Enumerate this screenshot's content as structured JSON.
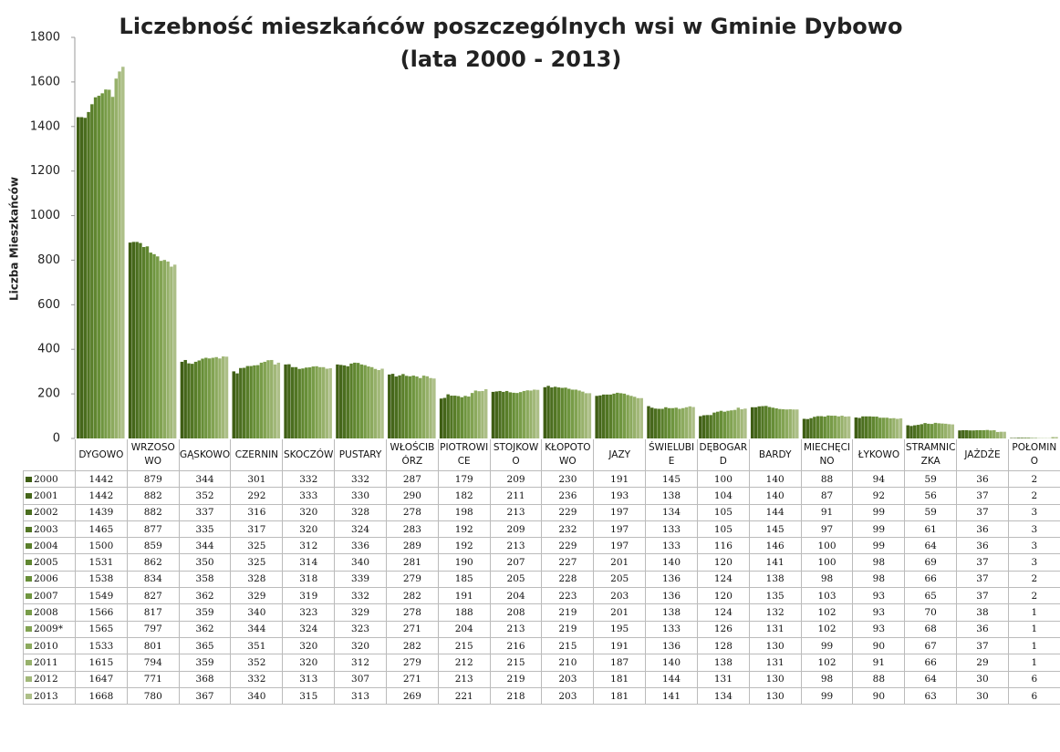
{
  "chart_data": {
    "type": "bar",
    "title": "Liczebność mieszkańców poszczególnych wsi w Gminie Dybowo",
    "subtitle": "(lata 2000 - 2013)",
    "y_label": "Liczba Mieszkańców",
    "categories": [
      "DYGOWO",
      "WRZOSOWO",
      "GĄSKOWO",
      "CZERNIN",
      "SKOCZÓW",
      "PUSTARY",
      "WŁOŚCIBÓRZ",
      "PIOTROWICE",
      "STOJKOWO",
      "KŁOPOTOWO",
      "JAZY",
      "ŚWIELUBIE",
      "DĘBOGARD",
      "BARDY",
      "MIECHĘCINO",
      "ŁYKOWO",
      "STRAMNICZKA",
      "JAŻDŻE",
      "POŁOMINO"
    ],
    "ylim": [
      0,
      1800
    ],
    "yticks": [
      0,
      200,
      400,
      600,
      800,
      1000,
      1200,
      1400,
      1600,
      1800
    ],
    "series": [
      {
        "name": "2000",
        "color": "#3f5e14",
        "values": [
          1442,
          879,
          344,
          301,
          332,
          332,
          287,
          179,
          209,
          230,
          191,
          145,
          100,
          140,
          88,
          94,
          59,
          36,
          2
        ]
      },
      {
        "name": "2001",
        "color": "#45661a",
        "values": [
          1442,
          882,
          352,
          292,
          333,
          330,
          290,
          182,
          211,
          236,
          193,
          138,
          104,
          140,
          87,
          92,
          56,
          37,
          2
        ]
      },
      {
        "name": "2002",
        "color": "#4b6e1f",
        "values": [
          1439,
          882,
          337,
          316,
          320,
          328,
          278,
          198,
          213,
          229,
          197,
          134,
          105,
          144,
          91,
          99,
          59,
          37,
          3
        ]
      },
      {
        "name": "2003",
        "color": "#527624",
        "values": [
          1465,
          877,
          335,
          317,
          320,
          324,
          283,
          192,
          209,
          232,
          197,
          133,
          105,
          145,
          97,
          99,
          61,
          36,
          3
        ]
      },
      {
        "name": "2004",
        "color": "#597e2a",
        "values": [
          1500,
          859,
          344,
          325,
          312,
          336,
          289,
          192,
          213,
          229,
          197,
          133,
          116,
          146,
          100,
          99,
          64,
          36,
          3
        ]
      },
      {
        "name": "2005",
        "color": "#608630",
        "values": [
          1531,
          862,
          350,
          325,
          314,
          340,
          281,
          190,
          207,
          227,
          201,
          140,
          120,
          141,
          100,
          98,
          69,
          37,
          3
        ]
      },
      {
        "name": "2006",
        "color": "#678e37",
        "values": [
          1538,
          834,
          358,
          328,
          318,
          339,
          279,
          185,
          205,
          228,
          205,
          136,
          124,
          138,
          98,
          98,
          66,
          37,
          2
        ]
      },
      {
        "name": "2007",
        "color": "#6f953f",
        "values": [
          1549,
          827,
          362,
          329,
          319,
          332,
          282,
          191,
          204,
          223,
          203,
          136,
          120,
          135,
          103,
          93,
          65,
          37,
          2
        ]
      },
      {
        "name": "2008",
        "color": "#789c48",
        "values": [
          1566,
          817,
          359,
          340,
          323,
          329,
          278,
          188,
          208,
          219,
          201,
          138,
          124,
          132,
          102,
          93,
          70,
          38,
          1
        ]
      },
      {
        "name": "2009*",
        "color": "#82a352",
        "values": [
          1565,
          797,
          362,
          344,
          324,
          323,
          271,
          204,
          213,
          219,
          195,
          133,
          126,
          131,
          102,
          93,
          68,
          36,
          1
        ]
      },
      {
        "name": "2010",
        "color": "#8caa5e",
        "values": [
          1533,
          801,
          365,
          351,
          320,
          320,
          282,
          215,
          216,
          215,
          191,
          136,
          128,
          130,
          99,
          90,
          67,
          37,
          1
        ]
      },
      {
        "name": "2011",
        "color": "#97b16b",
        "values": [
          1615,
          794,
          359,
          352,
          320,
          312,
          279,
          212,
          215,
          210,
          187,
          140,
          138,
          131,
          102,
          91,
          66,
          29,
          1
        ]
      },
      {
        "name": "2012",
        "color": "#a2b879",
        "values": [
          1647,
          771,
          368,
          332,
          313,
          307,
          271,
          213,
          219,
          203,
          181,
          144,
          131,
          130,
          98,
          88,
          64,
          30,
          6
        ]
      },
      {
        "name": "2013",
        "color": "#adbf88",
        "values": [
          1668,
          780,
          367,
          340,
          315,
          313,
          269,
          221,
          218,
          203,
          181,
          141,
          134,
          130,
          99,
          90,
          63,
          30,
          6
        ]
      }
    ]
  }
}
